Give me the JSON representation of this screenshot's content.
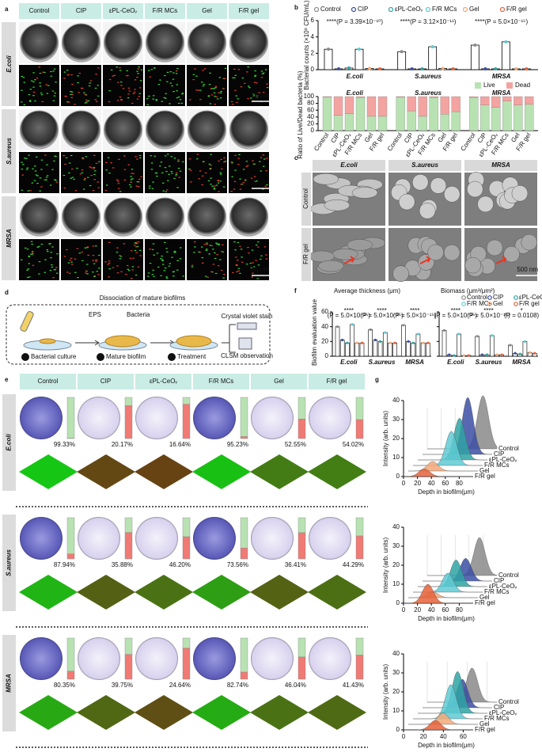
{
  "panel_labels": [
    "a",
    "b",
    "c",
    "d",
    "e",
    "f",
    "g"
  ],
  "series": [
    {
      "name": "Control",
      "color": "#8a8a8a"
    },
    {
      "name": "CIP",
      "color": "#3b4ea3"
    },
    {
      "name": "εPL-CeOᵥ",
      "color": "#2fa3a3"
    },
    {
      "name": "F/R MCs",
      "color": "#5fcad3"
    },
    {
      "name": "Gel",
      "color": "#f3a878"
    },
    {
      "name": "F/R gel",
      "color": "#e5623a"
    }
  ],
  "groups": [
    "E.coli",
    "S.aureus",
    "MRSA"
  ],
  "a": {
    "scale_bar": "25 μm"
  },
  "b": {
    "counts": {
      "type": "bar",
      "ylabel": "Bacterial counts (×10⁸ CFU/mL)",
      "ylim": [
        0,
        6
      ],
      "yticks": [
        0,
        2,
        4,
        6
      ],
      "values": [
        [
          2.5,
          2.2,
          3.0
        ],
        [
          0.1,
          0.1,
          0.1
        ],
        [
          0.2,
          0.1,
          0.1
        ],
        [
          2.5,
          2.8,
          3.4
        ],
        [
          0.15,
          0.15,
          0.1
        ],
        [
          0.1,
          0.1,
          0.1
        ]
      ],
      "annotations": [
        "****(P = 3.39×10⁻¹⁰)",
        "****(P = 3.12×10⁻¹¹)",
        "****(P = 5.0×10⁻¹⁵)"
      ]
    },
    "ratio": {
      "type": "stacked-bar",
      "ylabel": "Ratio of Live/Dead bacteria (%)",
      "ylim": [
        0,
        100
      ],
      "yticks": [
        0,
        20,
        40,
        60,
        80,
        100
      ],
      "legend": [
        {
          "name": "Live",
          "color": "#b9e2b2"
        },
        {
          "name": "Dead",
          "color": "#f3a4a1"
        }
      ],
      "live": [
        [
          98,
          45,
          50,
          97,
          42,
          42
        ],
        [
          98,
          58,
          42,
          97,
          48,
          55
        ],
        [
          97,
          75,
          68,
          87,
          75,
          77
        ]
      ],
      "dead": [
        [
          2,
          55,
          50,
          3,
          58,
          58
        ],
        [
          2,
          42,
          58,
          3,
          52,
          45
        ],
        [
          3,
          25,
          32,
          13,
          25,
          23
        ]
      ]
    }
  },
  "c": {
    "rows": [
      "Control",
      "F/R gel"
    ],
    "scale_bar": "500 nm"
  },
  "d": {
    "title": "Dissociation of mature biofilms",
    "steps": [
      {
        "num": "1",
        "label": "Bacterial culture"
      },
      {
        "num": "2",
        "label": "Mature biofilm"
      },
      {
        "num": "3",
        "label": "Treatment"
      }
    ],
    "labels": [
      "EPS",
      "Bacteria",
      "Crystal violet stain",
      "CLSM observation"
    ]
  },
  "e": {
    "live_percent": [
      [
        99.33,
        20.17,
        16.64,
        95.23,
        52.55,
        54.02
      ],
      [
        87.94,
        35.88,
        46.2,
        73.56,
        36.41,
        44.29
      ],
      [
        80.35,
        39.75,
        24.64,
        82.74,
        46.04,
        41.43
      ]
    ],
    "value_labels": [
      [
        "99.33%",
        "20.17%",
        "16.64%",
        "95.23%",
        "52.55%",
        "54.02%"
      ],
      [
        "87.94%",
        "35.88%",
        "46.20%",
        "73.56%",
        "36.41%",
        "44.29%"
      ],
      [
        "80.35%",
        "39.75%",
        "24.64%",
        "82.74%",
        "46.04%",
        "41.43%"
      ]
    ]
  },
  "f": {
    "ylabel": "Biofilm evaluation value",
    "ylim": [
      0,
      60
    ],
    "yticks": [
      0,
      20,
      40,
      60
    ],
    "subplots": [
      {
        "title": "Average thickness (μm)",
        "values": [
          [
            40,
            36,
            42
          ],
          [
            22,
            22,
            20
          ],
          [
            18,
            20,
            18
          ],
          [
            43,
            32,
            30
          ],
          [
            18,
            18,
            18
          ],
          [
            18,
            18,
            18
          ]
        ],
        "annotations": [
          {
            "stars": "****",
            "p": "(P = 5.0×10⁻¹⁵)"
          },
          {
            "stars": "****",
            "p": "(P = 5.0×10⁻¹⁵)"
          },
          {
            "stars": "****",
            "p": "(P = 5.0×10⁻¹⁵)"
          }
        ]
      },
      {
        "title": "Biomass (μm³/μm²)",
        "values": [
          [
            35,
            27,
            15
          ],
          [
            2,
            2,
            4
          ],
          [
            1,
            2,
            3
          ],
          [
            30,
            28,
            20
          ],
          [
            1,
            2,
            5
          ],
          [
            1,
            2,
            4
          ]
        ],
        "annotations": [
          {
            "stars": "****",
            "p": "(P = 5.0×10⁻¹⁵)"
          },
          {
            "stars": "****",
            "p": "(P = 5.0×10⁻¹⁵)"
          },
          {
            "stars": "*",
            "p": "(P = 0.0108)"
          }
        ]
      }
    ]
  },
  "g": {
    "xlabel": "Depth in biofilm(μm)",
    "ylabel": "Intensity (arb. units)",
    "charts": [
      {
        "type": "ridge",
        "xlim": [
          0,
          100
        ],
        "xticks": [
          0,
          20,
          40,
          60,
          80
        ],
        "ylim": [
          0,
          40
        ],
        "yticks": [
          0,
          10,
          20,
          30,
          40
        ],
        "peak_depth": [
          80,
          65,
          60,
          55,
          35,
          30
        ],
        "peak_intensity": [
          28,
          30,
          22,
          18,
          5,
          4
        ]
      },
      {
        "type": "ridge",
        "xlim": [
          0,
          100
        ],
        "xticks": [
          0,
          20,
          40,
          60,
          80
        ],
        "ylim": [
          0,
          40
        ],
        "yticks": [
          0,
          10,
          20,
          30,
          40
        ],
        "peak_depth": [
          75,
          62,
          55,
          50,
          35,
          35
        ],
        "peak_intensity": [
          20,
          12,
          14,
          10,
          3,
          10
        ]
      },
      {
        "type": "ridge",
        "xlim": [
          0,
          70
        ],
        "xticks": [
          0,
          20,
          40,
          60
        ],
        "ylim": [
          0,
          40
        ],
        "yticks": [
          0,
          10,
          20,
          30,
          40
        ],
        "peak_depth": [
          45,
          40,
          40,
          38,
          35,
          32
        ],
        "peak_intensity": [
          18,
          15,
          22,
          18,
          6,
          5
        ]
      }
    ]
  }
}
